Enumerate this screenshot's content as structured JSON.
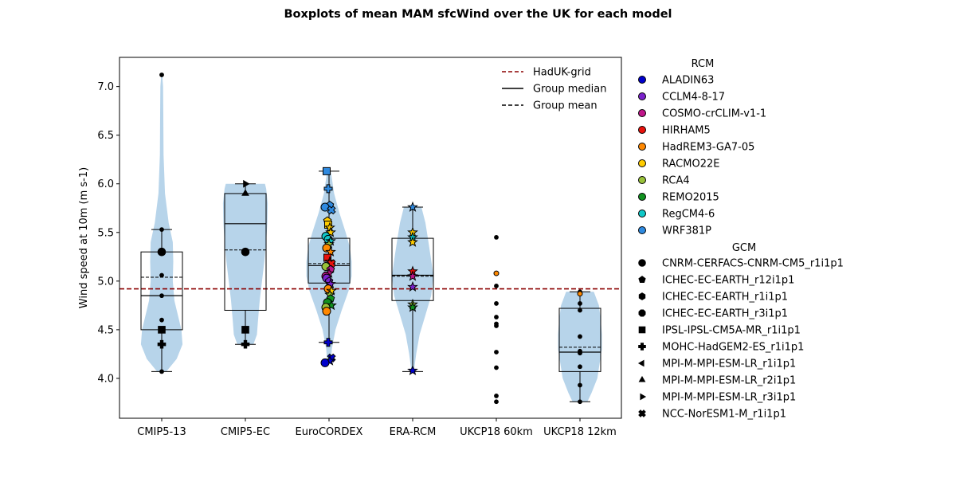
{
  "chart_data": {
    "type": "box",
    "title": "Boxplots of mean MAM sfcWind over the UK for each model",
    "xlabel": "",
    "ylabel": "Wind speed at 10m (m s-1)",
    "ylim": [
      3.59,
      7.3
    ],
    "yticks": [
      "4.0",
      "4.5",
      "5.0",
      "5.5",
      "6.0",
      "6.5",
      "7.0"
    ],
    "categories": [
      "CMIP5-13",
      "CMIP5-EC",
      "EuroCORDEX",
      "ERA-RCM",
      "UKCP18 60km",
      "UKCP18 12km"
    ],
    "reference": {
      "name": "HadUK-grid",
      "value": 4.92,
      "color": "#8b0000"
    },
    "boxes": [
      {
        "category": "CMIP5-13",
        "q1": 4.5,
        "median": 4.85,
        "q3": 5.3,
        "mean": 5.04,
        "whisker_low": 4.07,
        "whisker_high": 5.53,
        "violin": true
      },
      {
        "category": "CMIP5-EC",
        "q1": 4.7,
        "median": 5.59,
        "q3": 5.9,
        "mean": 5.32,
        "whisker_low": 4.35,
        "whisker_high": 6.0,
        "violin": true
      },
      {
        "category": "EuroCORDEX",
        "q1": 4.98,
        "median": 5.16,
        "q3": 5.44,
        "mean": 5.18,
        "whisker_low": 4.37,
        "whisker_high": 6.13,
        "violin": true
      },
      {
        "category": "ERA-RCM",
        "q1": 4.8,
        "median": 5.06,
        "q3": 5.44,
        "mean": 5.05,
        "whisker_low": 4.07,
        "whisker_high": 5.76,
        "violin": true
      },
      {
        "category": "UKCP18 60km",
        "violin": false
      },
      {
        "category": "UKCP18 12km",
        "q1": 4.07,
        "median": 4.27,
        "q3": 4.72,
        "mean": 4.32,
        "whisker_low": 3.76,
        "whisker_high": 4.89,
        "violin": true
      }
    ],
    "points": {
      "CMIP5-13": [
        {
          "y": 7.12,
          "marker": "dot"
        },
        {
          "y": 5.53,
          "marker": "dot"
        },
        {
          "y": 5.3,
          "marker": "circle"
        },
        {
          "y": 5.06,
          "marker": "dot"
        },
        {
          "y": 4.85,
          "marker": "dot"
        },
        {
          "y": 4.6,
          "marker": "dot"
        },
        {
          "y": 4.5,
          "marker": "square"
        },
        {
          "y": 4.35,
          "marker": "plus"
        },
        {
          "y": 4.07,
          "marker": "dot"
        }
      ],
      "CMIP5-EC": [
        {
          "y": 6.0,
          "marker": "triangle-right"
        },
        {
          "y": 5.9,
          "marker": "triangle-up"
        },
        {
          "y": 5.3,
          "marker": "circle"
        },
        {
          "y": 4.5,
          "marker": "square"
        },
        {
          "y": 4.35,
          "marker": "plus"
        }
      ],
      "EuroCORDEX": [
        {
          "y": 6.13,
          "marker": "square",
          "rcm": "WRF381P",
          "dx": -3
        },
        {
          "y": 5.95,
          "marker": "plus",
          "rcm": "WRF381P",
          "dx": -1
        },
        {
          "y": 5.78,
          "marker": "pentagon",
          "rcm": "WRF381P",
          "dx": 1
        },
        {
          "y": 5.76,
          "marker": "circle",
          "rcm": "WRF381P",
          "dx": -5
        },
        {
          "y": 5.73,
          "marker": "cross",
          "rcm": "WRF381P",
          "dx": 3
        },
        {
          "y": 5.62,
          "marker": "pentagon",
          "rcm": "RACMO22E",
          "dx": -2
        },
        {
          "y": 5.58,
          "marker": "square",
          "rcm": "RACMO22E",
          "dx": -1
        },
        {
          "y": 5.55,
          "marker": "star",
          "rcm": "RACMO22E",
          "dx": 1
        },
        {
          "y": 5.5,
          "marker": "star",
          "rcm": "RACMO22E",
          "dx": 2
        },
        {
          "y": 5.46,
          "marker": "circle",
          "rcm": "RegCM4-6",
          "dx": -4
        },
        {
          "y": 5.43,
          "marker": "circle",
          "rcm": "RegCM4-6",
          "dx": -1
        },
        {
          "y": 5.41,
          "marker": "star",
          "rcm": "RegCM4-6",
          "dx": 2
        },
        {
          "y": 5.38,
          "marker": "star",
          "rcm": "RCA4",
          "dx": 0
        },
        {
          "y": 5.34,
          "marker": "circle",
          "rcm": "HadREM3-GA7-05",
          "dx": -3
        },
        {
          "y": 5.3,
          "marker": "star",
          "rcm": "HadREM3-GA7-05",
          "dx": 2
        },
        {
          "y": 5.24,
          "marker": "square",
          "rcm": "HIRHAM5",
          "dx": -2
        },
        {
          "y": 5.2,
          "marker": "star",
          "rcm": "HIRHAM5",
          "dx": 1
        },
        {
          "y": 5.18,
          "marker": "cross",
          "rcm": "HIRHAM5",
          "dx": 3
        },
        {
          "y": 5.15,
          "marker": "circle",
          "rcm": "RCA4",
          "dx": -4
        },
        {
          "y": 5.12,
          "marker": "pentagon",
          "rcm": "COSMO-crCLIM-v1-1",
          "dx": 2
        },
        {
          "y": 5.08,
          "marker": "star",
          "rcm": "COSMO-crCLIM-v1-1",
          "dx": 0
        },
        {
          "y": 5.05,
          "marker": "circle",
          "rcm": "COSMO-crCLIM-v1-1",
          "dx": -4
        },
        {
          "y": 5.03,
          "marker": "circle",
          "rcm": "CCLM4-8-17",
          "dx": -3
        },
        {
          "y": 5.0,
          "marker": "pentagon",
          "rcm": "CCLM4-8-17",
          "dx": 0
        },
        {
          "y": 4.97,
          "marker": "star",
          "rcm": "CCLM4-8-17",
          "dx": 2
        },
        {
          "y": 4.92,
          "marker": "circle",
          "rcm": "HadREM3-GA7-05",
          "dx": -1
        },
        {
          "y": 4.9,
          "marker": "star",
          "rcm": "RACMO22E",
          "dx": 3
        },
        {
          "y": 4.86,
          "marker": "star",
          "rcm": "RCA4",
          "dx": 1
        },
        {
          "y": 4.82,
          "marker": "pentagon",
          "rcm": "REMO2015",
          "dx": 2
        },
        {
          "y": 4.78,
          "marker": "circle",
          "rcm": "REMO2015",
          "dx": -2
        },
        {
          "y": 4.75,
          "marker": "star",
          "rcm": "REMO2015",
          "dx": 3
        },
        {
          "y": 4.73,
          "marker": "circle",
          "rcm": "RCA4",
          "dx": -4
        },
        {
          "y": 4.69,
          "marker": "circle",
          "rcm": "HadREM3-GA7-05",
          "dx": -3
        },
        {
          "y": 4.37,
          "marker": "plus",
          "rcm": "ALADIN63",
          "dx": -1
        },
        {
          "y": 4.21,
          "marker": "cross",
          "rcm": "ALADIN63",
          "dx": 3
        },
        {
          "y": 4.18,
          "marker": "star",
          "rcm": "ALADIN63",
          "dx": 1
        },
        {
          "y": 4.16,
          "marker": "circle",
          "rcm": "ALADIN63",
          "dx": -5
        }
      ],
      "ERA-RCM": [
        {
          "y": 5.76,
          "marker": "star",
          "rcm": "WRF381P"
        },
        {
          "y": 5.5,
          "marker": "star",
          "rcm": "RACMO22E"
        },
        {
          "y": 5.45,
          "marker": "star",
          "rcm": "RegCM4-6"
        },
        {
          "y": 5.4,
          "marker": "star",
          "rcm": "RACMO22E"
        },
        {
          "y": 5.1,
          "marker": "star",
          "rcm": "HIRHAM5"
        },
        {
          "y": 5.05,
          "marker": "star",
          "rcm": "COSMO-crCLIM-v1-1"
        },
        {
          "y": 4.94,
          "marker": "star",
          "rcm": "CCLM4-8-17"
        },
        {
          "y": 4.76,
          "marker": "star",
          "rcm": "RCA4"
        },
        {
          "y": 4.73,
          "marker": "star",
          "rcm": "REMO2015"
        },
        {
          "y": 4.08,
          "marker": "star",
          "rcm": "ALADIN63"
        }
      ],
      "UKCP18 60km": [
        {
          "y": 5.45,
          "marker": "dot"
        },
        {
          "y": 5.08,
          "marker": "dot",
          "rcm": "HadREM3-GA7-05"
        },
        {
          "y": 4.95,
          "marker": "dot"
        },
        {
          "y": 4.77,
          "marker": "dot"
        },
        {
          "y": 4.63,
          "marker": "dot"
        },
        {
          "y": 4.56,
          "marker": "dot"
        },
        {
          "y": 4.54,
          "marker": "dot"
        },
        {
          "y": 4.27,
          "marker": "dot"
        },
        {
          "y": 4.11,
          "marker": "dot"
        },
        {
          "y": 3.82,
          "marker": "dot"
        },
        {
          "y": 3.76,
          "marker": "dot"
        }
      ],
      "UKCP18 12km": [
        {
          "y": 4.89,
          "marker": "dot"
        },
        {
          "y": 4.87,
          "marker": "dot",
          "rcm": "HadREM3-GA7-05"
        },
        {
          "y": 4.77,
          "marker": "dot"
        },
        {
          "y": 4.7,
          "marker": "dot"
        },
        {
          "y": 4.43,
          "marker": "dot"
        },
        {
          "y": 4.28,
          "marker": "dot"
        },
        {
          "y": 4.26,
          "marker": "dot"
        },
        {
          "y": 4.12,
          "marker": "dot"
        },
        {
          "y": 3.93,
          "marker": "dot"
        },
        {
          "y": 3.76,
          "marker": "dot"
        }
      ]
    },
    "line_legend": {
      "placement": "top-right",
      "entries": [
        {
          "label": "HadUK-grid",
          "style": "dashed",
          "color": "#8b0000"
        },
        {
          "label": "Group median",
          "style": "solid",
          "color": "#000000"
        },
        {
          "label": "Group mean",
          "style": "dashed",
          "color": "#000000"
        }
      ]
    },
    "rcm_legend": {
      "title": "RCM",
      "entries": [
        {
          "label": "ALADIN63",
          "color": "#0000cc"
        },
        {
          "label": "CCLM4-8-17",
          "color": "#7b22cc"
        },
        {
          "label": "COSMO-crCLIM-v1-1",
          "color": "#c0168a"
        },
        {
          "label": "HIRHAM5",
          "color": "#e8120c"
        },
        {
          "label": "HadREM3-GA7-05",
          "color": "#ff8800"
        },
        {
          "label": "RACMO22E",
          "color": "#ffcc00"
        },
        {
          "label": "RCA4",
          "color": "#99c23a"
        },
        {
          "label": "REMO2015",
          "color": "#11921f"
        },
        {
          "label": "RegCM4-6",
          "color": "#10c8c8"
        },
        {
          "label": "WRF381P",
          "color": "#2f8ae0"
        }
      ]
    },
    "gcm_legend": {
      "title": "GCM",
      "entries": [
        {
          "label": "CNRM-CERFACS-CNRM-CM5_r1i1p1",
          "marker": "circle"
        },
        {
          "label": "ICHEC-EC-EARTH_r12i1p1",
          "marker": "pentagon"
        },
        {
          "label": "ICHEC-EC-EARTH_r1i1p1",
          "marker": "hexagon"
        },
        {
          "label": "ICHEC-EC-EARTH_r3i1p1",
          "marker": "octagon"
        },
        {
          "label": "IPSL-IPSL-CM5A-MR_r1i1p1",
          "marker": "square"
        },
        {
          "label": "MOHC-HadGEM2-ES_r1i1p1",
          "marker": "plus"
        },
        {
          "label": "MPI-M-MPI-ESM-LR_r1i1p1",
          "marker": "triangle-left"
        },
        {
          "label": "MPI-M-MPI-ESM-LR_r2i1p1",
          "marker": "triangle-up"
        },
        {
          "label": "MPI-M-MPI-ESM-LR_r3i1p1",
          "marker": "triangle-right"
        },
        {
          "label": "NCC-NorESM1-M_r1i1p1",
          "marker": "cross"
        }
      ]
    },
    "colors": {
      "violin": "#b7d4ea",
      "axis": "#000000"
    }
  }
}
